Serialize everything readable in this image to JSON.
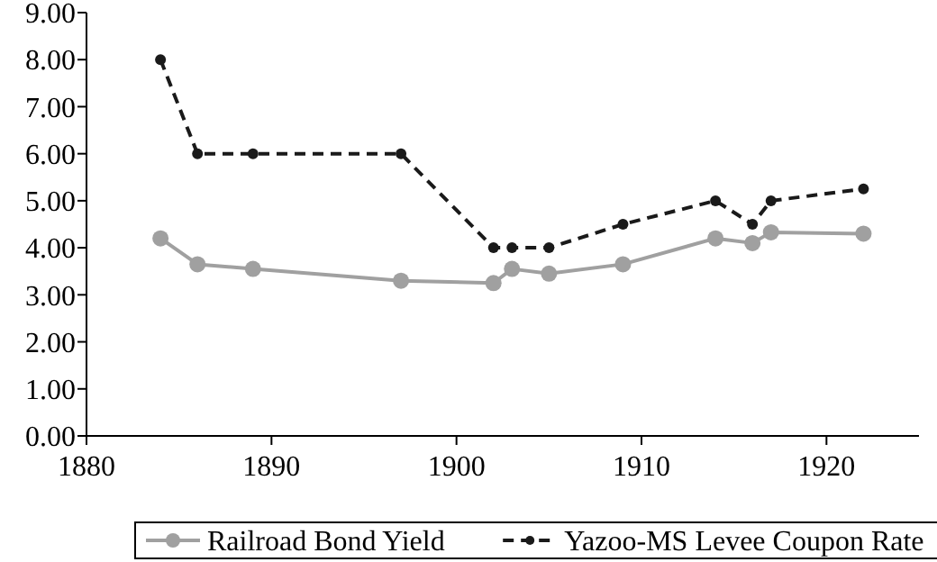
{
  "chart_data": {
    "type": "line",
    "xlim": [
      1880,
      1925
    ],
    "xticks": [
      1880,
      1890,
      1900,
      1910,
      1920
    ],
    "ylim": [
      0,
      9
    ],
    "yticks": [
      {
        "value": 0,
        "label": "0.00"
      },
      {
        "value": 1,
        "label": "1.00"
      },
      {
        "value": 2,
        "label": "2.00"
      },
      {
        "value": 3,
        "label": "3.00"
      },
      {
        "value": 4,
        "label": "4.00"
      },
      {
        "value": 5,
        "label": "5.00"
      },
      {
        "value": 6,
        "label": "6.00"
      },
      {
        "value": 7,
        "label": "7.00"
      },
      {
        "value": 8,
        "label": "8.00"
      },
      {
        "value": 9,
        "label": "9.00"
      }
    ],
    "grid": false,
    "legend": "bottom",
    "x": [
      1884,
      1886,
      1889,
      1897,
      1902,
      1903,
      1905,
      1909,
      1914,
      1916,
      1917,
      1922
    ],
    "series": [
      {
        "name": "Railroad Bond Yield",
        "color": "#a0a0a0",
        "marker": "circle",
        "line_style": "solid",
        "values": [
          4.2,
          3.65,
          3.55,
          3.3,
          3.25,
          3.55,
          3.45,
          3.65,
          4.2,
          4.1,
          4.33,
          4.3
        ]
      },
      {
        "name": "Yazoo-MS Levee Coupon Rate",
        "color": "#1a1a1a",
        "marker": "circle",
        "line_style": "dashed",
        "values": [
          8,
          6,
          6,
          6,
          4,
          4,
          4,
          4.5,
          5,
          4.5,
          5,
          5.25
        ]
      }
    ]
  }
}
